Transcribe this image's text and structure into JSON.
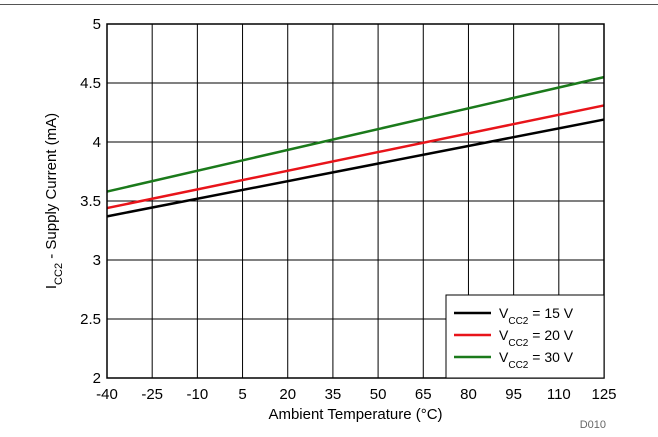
{
  "chart_data": {
    "type": "line",
    "x": [
      -40,
      125
    ],
    "xticks": [
      -40,
      -25,
      -10,
      5,
      20,
      35,
      50,
      65,
      80,
      95,
      110,
      125
    ],
    "yticks": [
      2,
      2.5,
      3,
      3.5,
      4,
      4.5,
      5
    ],
    "xlim": [
      -40,
      125
    ],
    "ylim": [
      2,
      5
    ],
    "grid": true,
    "xlabel": "Ambient Temperature (°C)",
    "ylabel": {
      "main": "I",
      "sub": "CC2",
      "rest": " - Supply Current (mA)"
    },
    "legend_position": "bottom-right",
    "series": [
      {
        "label": {
          "main": "V",
          "sub": "CC2",
          "rest": " = 15 V"
        },
        "color": "#000000",
        "values": [
          3.37,
          4.19
        ]
      },
      {
        "label": {
          "main": "V",
          "sub": "CC2",
          "rest": " = 20 V"
        },
        "color": "#e8141a",
        "values": [
          3.44,
          4.31
        ]
      },
      {
        "label": {
          "main": "V",
          "sub": "CC2",
          "rest": " = 30 V"
        },
        "color": "#1b7a1b",
        "values": [
          3.58,
          4.55
        ]
      }
    ],
    "annotation": "D010"
  }
}
